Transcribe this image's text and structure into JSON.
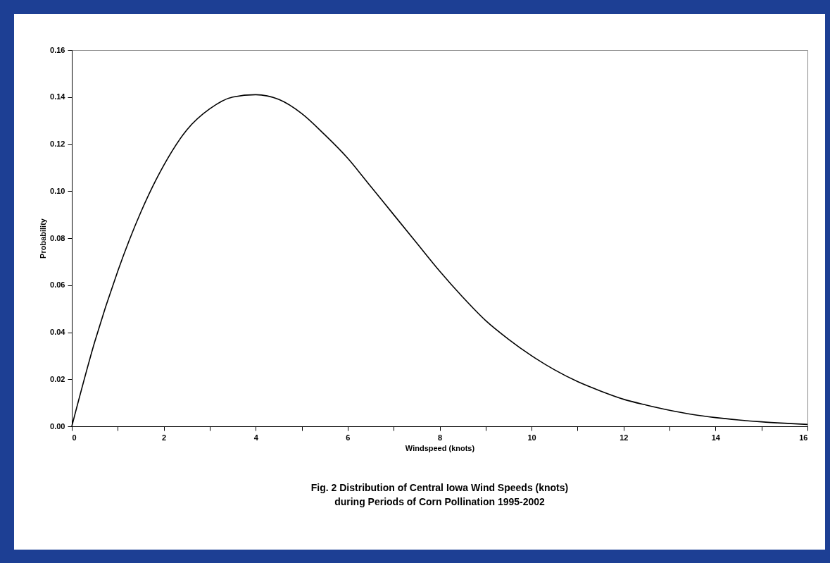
{
  "chart_data": {
    "type": "line",
    "title": "Fig. 2 Distribution of Central Iowa Wind Speeds (knots)",
    "subtitle": "during Periods of Corn Pollination 1995-2002",
    "xlabel": "Windspeed (knots)",
    "ylabel": "Probability",
    "x": [
      0,
      0.5,
      1,
      1.5,
      2,
      2.5,
      3,
      3.5,
      4,
      4.5,
      5,
      5.5,
      6,
      6.5,
      7,
      7.5,
      8,
      8.5,
      9,
      9.5,
      10,
      10.5,
      11,
      11.5,
      12,
      12.5,
      13,
      13.5,
      14,
      14.5,
      15,
      15.5,
      16
    ],
    "series": [
      {
        "color": "#000000",
        "values": [
          0,
          0.036,
          0.066,
          0.091,
          0.111,
          0.126,
          0.135,
          0.14,
          0.141,
          0.139,
          0.133,
          0.124,
          0.114,
          0.102,
          0.09,
          0.078,
          0.066,
          0.055,
          0.045,
          0.037,
          0.03,
          0.024,
          0.019,
          0.015,
          0.0115,
          0.009,
          0.0068,
          0.005,
          0.0037,
          0.0027,
          0.0019,
          0.0013,
          0.0008
        ]
      }
    ],
    "xlim": [
      0,
      16
    ],
    "ylim": [
      0,
      0.16
    ],
    "xticks": [
      0,
      {
        "value": 1,
        "label": null
      },
      2,
      {
        "value": 3,
        "label": null
      },
      4,
      {
        "value": 5,
        "label": null
      },
      6,
      {
        "value": 7,
        "label": null
      },
      8,
      {
        "value": 9,
        "label": null
      },
      10,
      {
        "value": 11,
        "label": null
      },
      12,
      {
        "value": 13,
        "label": null
      },
      14,
      {
        "value": 15,
        "label": null
      },
      16
    ],
    "yticks": [
      {
        "value": 0,
        "label": "0.00"
      },
      {
        "value": 0.02,
        "label": "0.02"
      },
      {
        "value": 0.04,
        "label": "0.04"
      },
      {
        "value": 0.06,
        "label": "0.06"
      },
      {
        "value": 0.08,
        "label": "0.08"
      },
      {
        "value": 0.1,
        "label": "0.10"
      },
      {
        "value": 0.12,
        "label": "0.12"
      },
      {
        "value": 0.14,
        "label": "0.14"
      },
      {
        "value": 0.16,
        "label": "0.16"
      }
    ],
    "grid": false,
    "marker": "none",
    "line_style": "solid"
  }
}
